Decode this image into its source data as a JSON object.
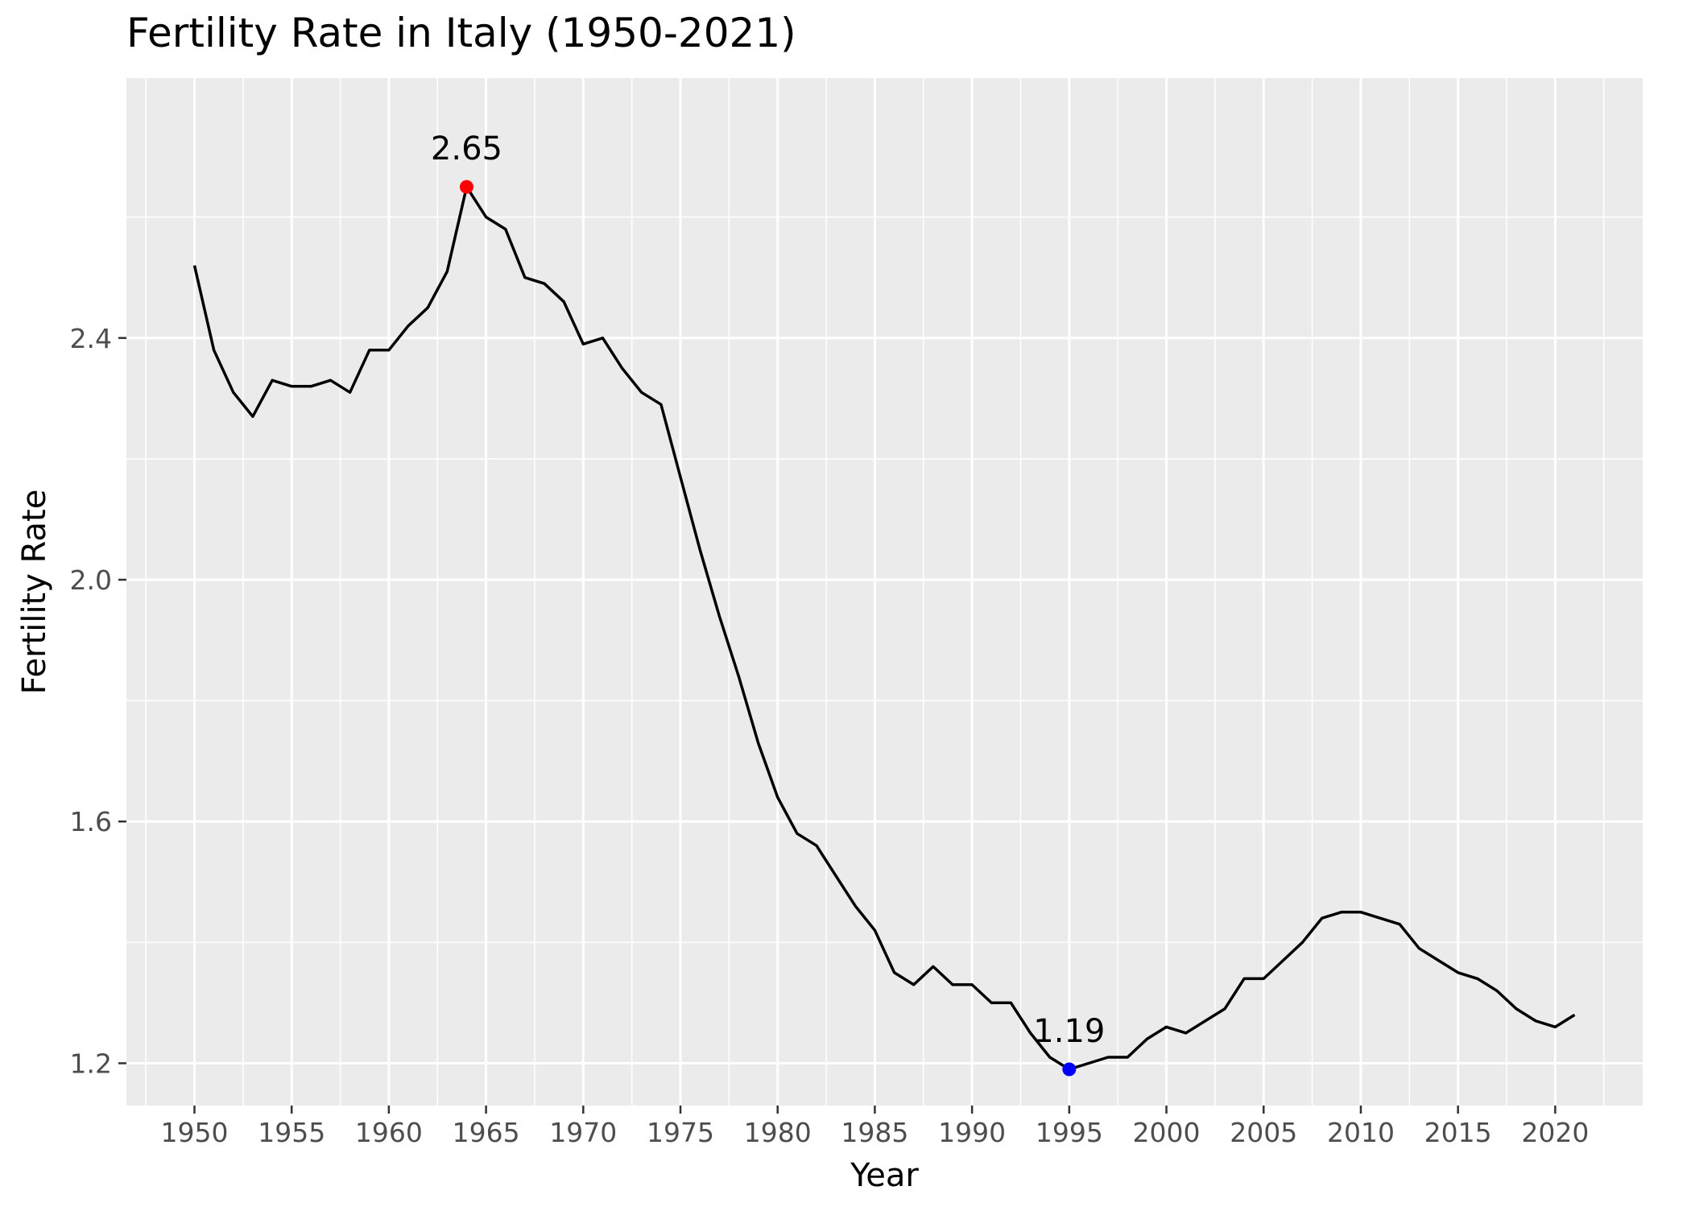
{
  "chart_data": {
    "type": "line",
    "title": "Fertility Rate in Italy (1950-2021)",
    "xlabel": "Year",
    "ylabel": "Fertility Rate",
    "xlim": [
      1946.5,
      2024.5
    ],
    "ylim": [
      1.13,
      2.83
    ],
    "x_ticks": [
      1950,
      1955,
      1960,
      1965,
      1970,
      1975,
      1980,
      1985,
      1990,
      1995,
      2000,
      2005,
      2010,
      2015,
      2020
    ],
    "y_ticks": [
      1.2,
      1.6,
      2.0,
      2.4
    ],
    "y_tick_labels": [
      "1.2",
      "1.6",
      "2.0",
      "2.4"
    ],
    "grid": true,
    "line_color": "#000000",
    "panel_color": "#ebebeb",
    "x": [
      1950,
      1951,
      1952,
      1953,
      1954,
      1955,
      1956,
      1957,
      1958,
      1959,
      1960,
      1961,
      1962,
      1963,
      1964,
      1965,
      1966,
      1967,
      1968,
      1969,
      1970,
      1971,
      1972,
      1973,
      1974,
      1975,
      1976,
      1977,
      1978,
      1979,
      1980,
      1981,
      1982,
      1983,
      1984,
      1985,
      1986,
      1987,
      1988,
      1989,
      1990,
      1991,
      1992,
      1993,
      1994,
      1995,
      1996,
      1997,
      1998,
      1999,
      2000,
      2001,
      2002,
      2003,
      2004,
      2005,
      2006,
      2007,
      2008,
      2009,
      2010,
      2011,
      2012,
      2013,
      2014,
      2015,
      2016,
      2017,
      2018,
      2019,
      2020,
      2021
    ],
    "y": [
      2.52,
      2.38,
      2.31,
      2.27,
      2.33,
      2.32,
      2.32,
      2.33,
      2.31,
      2.38,
      2.38,
      2.42,
      2.45,
      2.51,
      2.65,
      2.6,
      2.58,
      2.5,
      2.49,
      2.46,
      2.39,
      2.4,
      2.35,
      2.31,
      2.29,
      2.17,
      2.05,
      1.94,
      1.84,
      1.73,
      1.64,
      1.58,
      1.56,
      1.51,
      1.46,
      1.42,
      1.35,
      1.33,
      1.36,
      1.33,
      1.33,
      1.3,
      1.3,
      1.25,
      1.21,
      1.19,
      1.2,
      1.21,
      1.21,
      1.24,
      1.26,
      1.25,
      1.27,
      1.29,
      1.34,
      1.34,
      1.37,
      1.4,
      1.44,
      1.45,
      1.45,
      1.44,
      1.43,
      1.39,
      1.37,
      1.35,
      1.34,
      1.32,
      1.29,
      1.27,
      1.26,
      1.28
    ],
    "highlights": [
      {
        "x": 1964,
        "y": 2.65,
        "label": "2.65",
        "color": "#ff0000"
      },
      {
        "x": 1995,
        "y": 1.19,
        "label": "1.19",
        "color": "#0000ff"
      }
    ]
  }
}
